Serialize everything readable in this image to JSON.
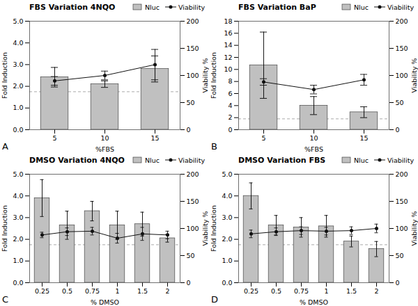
{
  "chart_data": [
    {
      "type": "bar",
      "title": "FBS Variation 4NQO",
      "xlabel": "%FBS",
      "ylabel": "Fold Induction",
      "y2label": "Viability %",
      "categories": [
        "5",
        "10",
        "15"
      ],
      "series": [
        {
          "name": "Nluc",
          "type": "bar",
          "color": "#c0c0c0",
          "values": [
            2.42,
            2.1,
            2.8
          ],
          "errors": [
            0.45,
            0.15,
            0.6
          ]
        },
        {
          "name": "Viability",
          "type": "line",
          "axis": "y2",
          "color": "#111111",
          "marker": "o",
          "line_style": "solid",
          "values": [
            90,
            100,
            120
          ],
          "errors": [
            8,
            8,
            28
          ]
        }
      ],
      "ylim": [
        0,
        5
      ],
      "yticks": [
        0,
        1,
        2,
        3,
        4,
        5
      ],
      "y2lim": [
        0,
        200
      ],
      "y2ticks": [
        0,
        50,
        100,
        150,
        200
      ],
      "reference_line": {
        "y": 1.75,
        "color": "#aaaaaa",
        "line_style": "dashed"
      },
      "panel_label": "A"
    },
    {
      "type": "bar",
      "title": "FBS Variation BaP",
      "xlabel": "%FBS",
      "ylabel": "Fold Induction",
      "y2label": "Viability %",
      "categories": [
        "5",
        "10",
        "15"
      ],
      "series": [
        {
          "name": "Nluc",
          "type": "bar",
          "color": "#c0c0c0",
          "values": [
            10.7,
            4.0,
            2.9
          ],
          "errors": [
            5.5,
            1.5,
            0.9
          ]
        },
        {
          "name": "Viability",
          "type": "line",
          "axis": "y2",
          "color": "#111111",
          "marker": "o",
          "line_style": "solid",
          "values": [
            88,
            74,
            92
          ],
          "errors": [
            6,
            8,
            10
          ]
        }
      ],
      "ylim": [
        0,
        18
      ],
      "yticks": [
        0,
        2,
        4,
        6,
        8,
        10,
        12,
        14,
        16,
        18
      ],
      "y2lim": [
        0,
        200
      ],
      "y2ticks": [
        0,
        50,
        100,
        150,
        200
      ],
      "reference_line": {
        "y": 1.8,
        "color": "#aaaaaa",
        "line_style": "dashed"
      },
      "panel_label": "B"
    },
    {
      "type": "bar",
      "title": "DMSO Variation 4NQO",
      "xlabel": "% DMSO",
      "ylabel": "Fold Induction",
      "y2label": "Viability %",
      "categories": [
        "0.25",
        "0.5",
        "0.75",
        "1",
        "1.5",
        "2"
      ],
      "series": [
        {
          "name": "Nluc",
          "type": "bar",
          "color": "#c0c0c0",
          "values": [
            3.9,
            2.65,
            3.3,
            2.65,
            2.7,
            2.05
          ],
          "errors": [
            0.85,
            0.65,
            0.45,
            0.65,
            0.55,
            0.18
          ]
        },
        {
          "name": "Viability",
          "type": "line",
          "axis": "y2",
          "color": "#111111",
          "marker": "o",
          "line_style": "solid",
          "values": [
            88,
            94,
            95,
            82,
            90,
            88
          ],
          "errors": [
            5,
            7,
            7,
            9,
            12,
            7
          ]
        }
      ],
      "ylim": [
        0,
        5
      ],
      "yticks": [
        0,
        1,
        2,
        3,
        4,
        5
      ],
      "y2lim": [
        0,
        200
      ],
      "y2ticks": [
        0,
        50,
        100,
        150,
        200
      ],
      "reference_line": {
        "y": 1.75,
        "color": "#aaaaaa",
        "line_style": "dashed"
      },
      "panel_label": "C"
    },
    {
      "type": "bar",
      "title": "DMSO Variation FBS",
      "xlabel": "% DMSO",
      "ylabel": "Fold Induction",
      "y2label": "Viability %",
      "categories": [
        "0.25",
        "0.5",
        "0.75",
        "1",
        "1.5",
        "2"
      ],
      "series": [
        {
          "name": "Nluc",
          "type": "bar",
          "color": "#c0c0c0",
          "values": [
            4.0,
            2.65,
            2.55,
            2.6,
            1.9,
            1.55
          ],
          "errors": [
            0.6,
            0.45,
            0.45,
            0.5,
            0.25,
            0.35
          ]
        },
        {
          "name": "Viability",
          "type": "line",
          "axis": "y2",
          "color": "#111111",
          "marker": "o",
          "line_style": "solid",
          "values": [
            90,
            94,
            96,
            95,
            96,
            100
          ],
          "errors": [
            7,
            7,
            7,
            7,
            7,
            8
          ]
        }
      ],
      "ylim": [
        0,
        5
      ],
      "yticks": [
        0,
        1,
        2,
        3,
        4,
        5
      ],
      "y2lim": [
        0,
        200
      ],
      "y2ticks": [
        0,
        50,
        100,
        150,
        200
      ],
      "reference_line": {
        "y": 1.75,
        "color": "#aaaaaa",
        "line_style": "dashed"
      },
      "panel_label": "D"
    }
  ]
}
